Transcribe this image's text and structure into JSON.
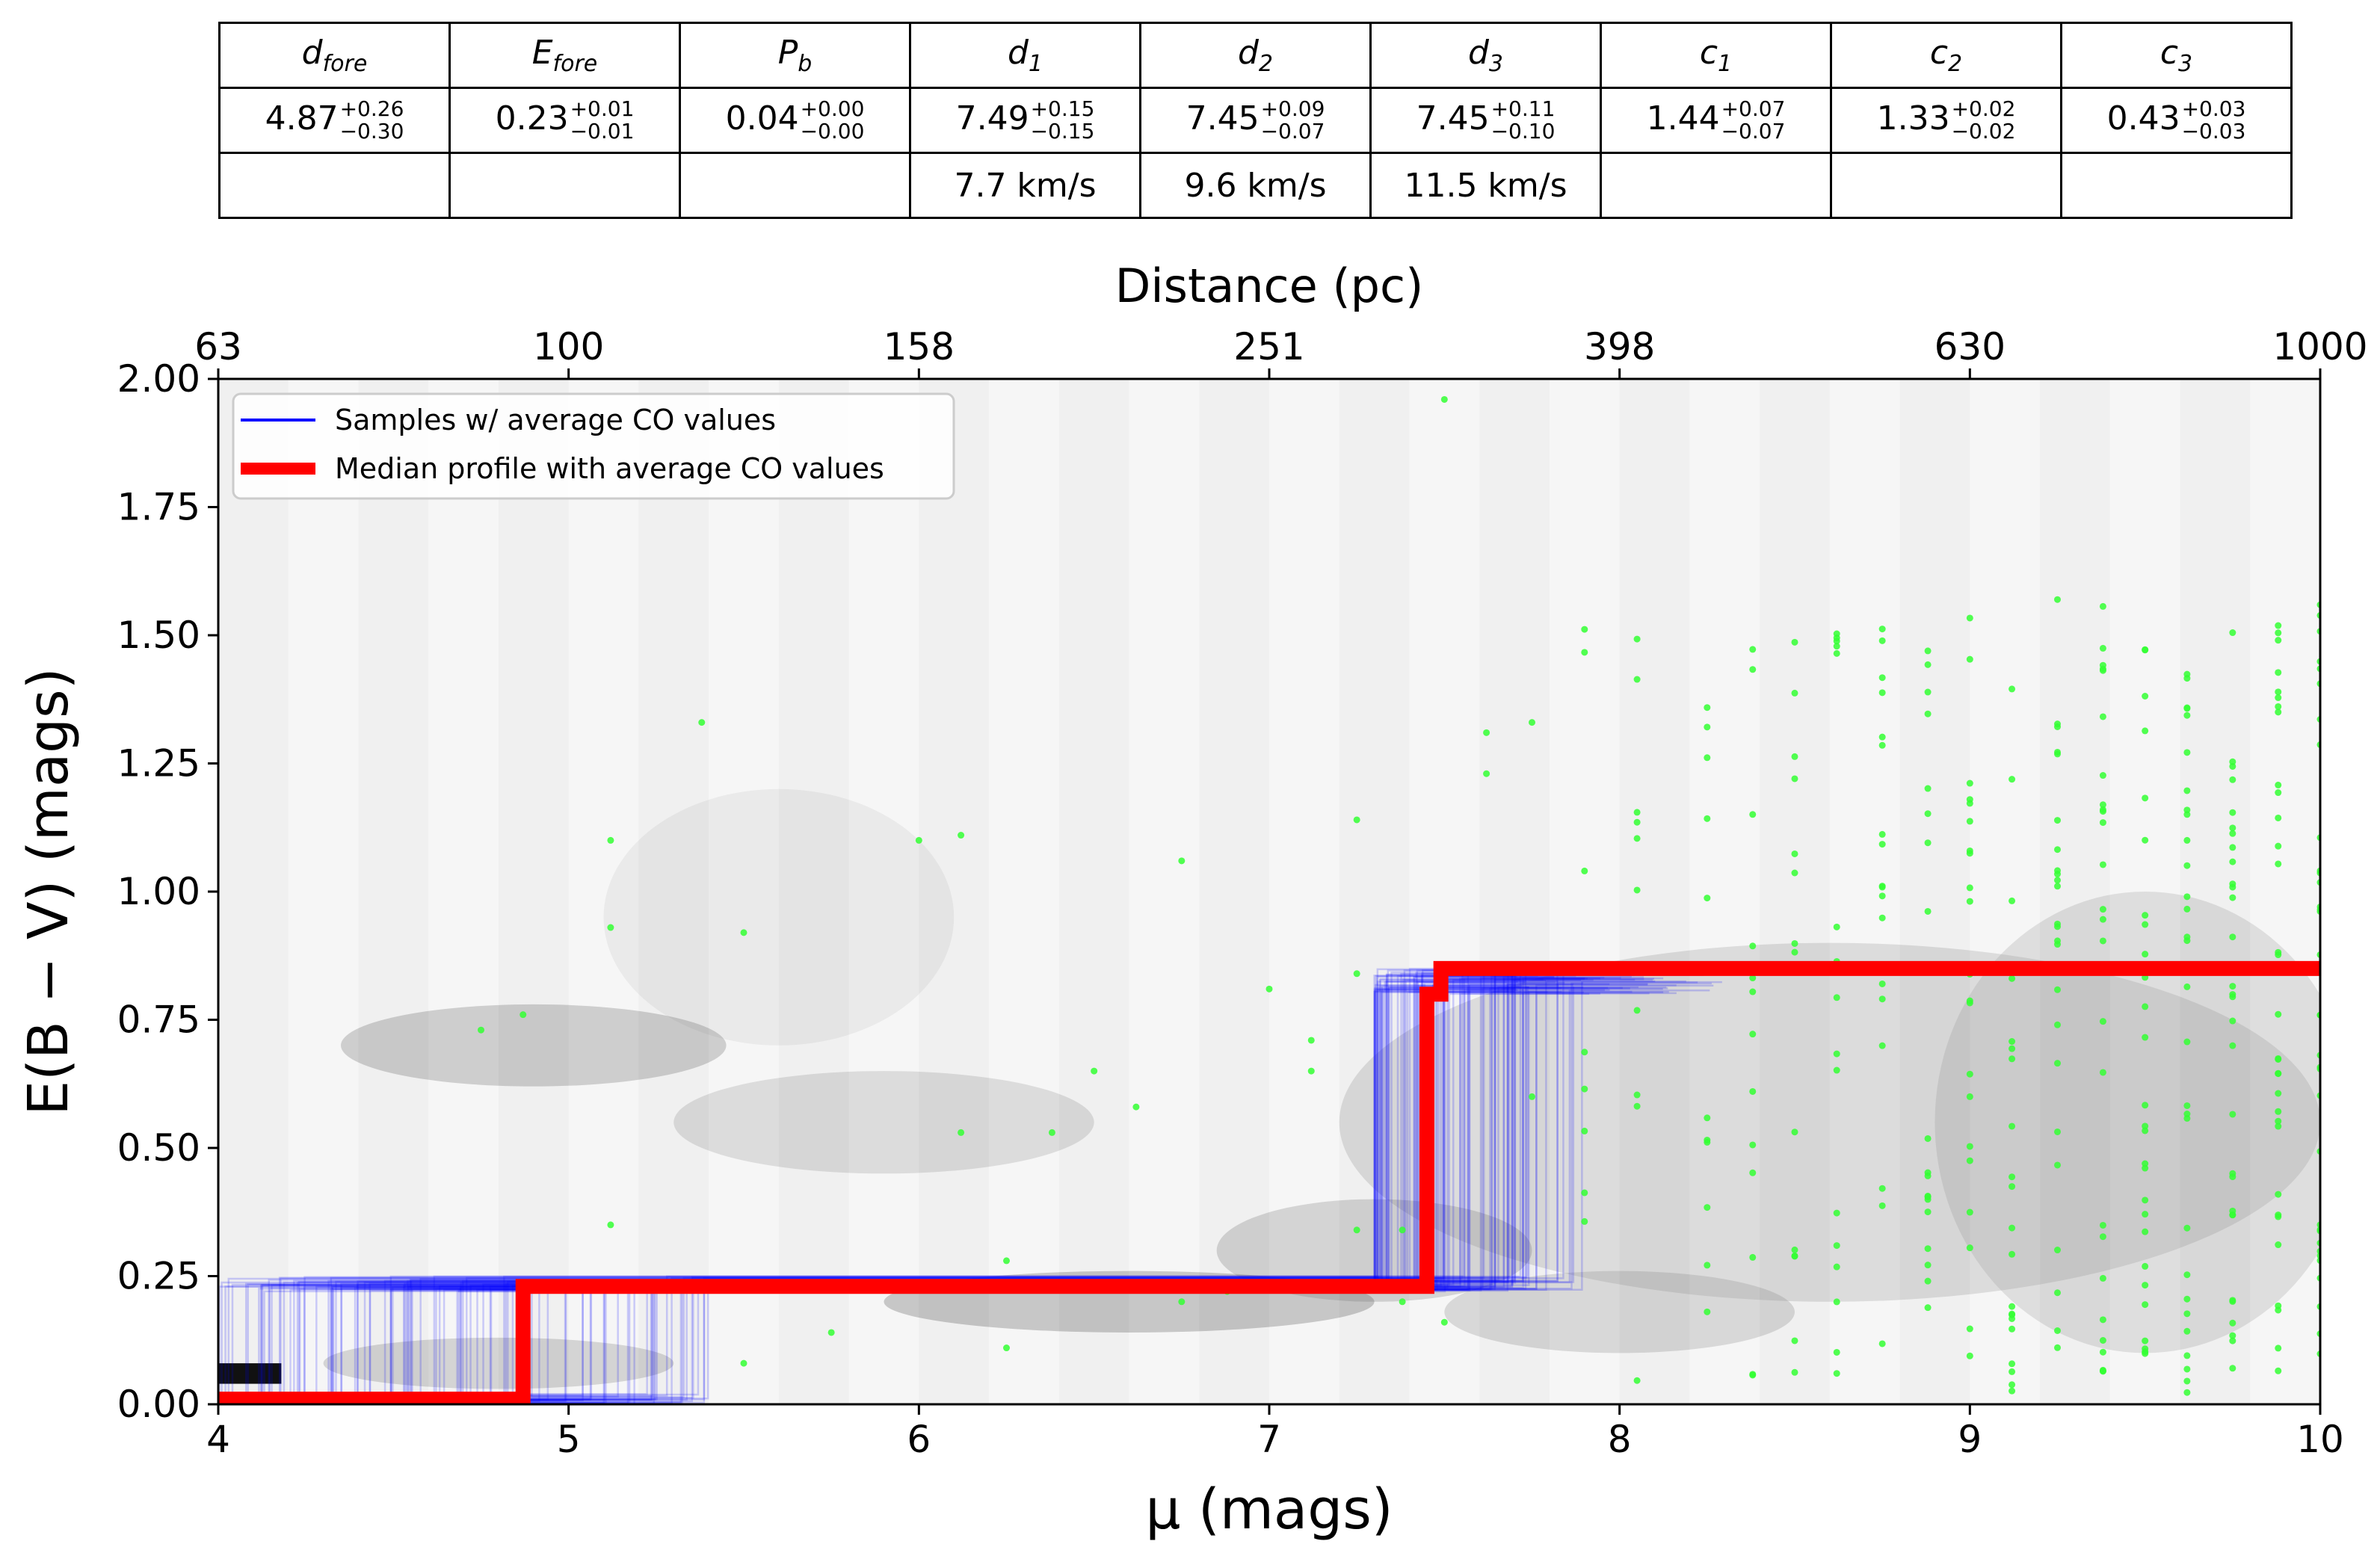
{
  "table": {
    "headers": [
      {
        "sym": "d",
        "sub": "fore"
      },
      {
        "sym": "E",
        "sub": "fore"
      },
      {
        "sym": "P",
        "sub": "b"
      },
      {
        "sym": "d",
        "sub": "1"
      },
      {
        "sym": "d",
        "sub": "2"
      },
      {
        "sym": "d",
        "sub": "3"
      },
      {
        "sym": "c",
        "sub": "1"
      },
      {
        "sym": "c",
        "sub": "2"
      },
      {
        "sym": "c",
        "sub": "3"
      }
    ],
    "values": [
      {
        "v": "4.87",
        "up": "+0.26",
        "lo": "−0.30"
      },
      {
        "v": "0.23",
        "up": "+0.01",
        "lo": "−0.01"
      },
      {
        "v": "0.04",
        "up": "+0.00",
        "lo": "−0.00"
      },
      {
        "v": "7.49",
        "up": "+0.15",
        "lo": "−0.15"
      },
      {
        "v": "7.45",
        "up": "+0.09",
        "lo": "−0.07"
      },
      {
        "v": "7.45",
        "up": "+0.11",
        "lo": "−0.10"
      },
      {
        "v": "1.44",
        "up": "+0.07",
        "lo": "−0.07"
      },
      {
        "v": "1.33",
        "up": "+0.02",
        "lo": "−0.02"
      },
      {
        "v": "0.43",
        "up": "+0.03",
        "lo": "−0.03"
      }
    ],
    "velocities": [
      "",
      "",
      "",
      "7.7 km/s",
      "9.6 km/s",
      "11.5 km/s",
      "",
      "",
      ""
    ]
  },
  "chart_data": {
    "type": "line",
    "xlabel": "μ (mags)",
    "ylabel": "E(B − V) (mags)",
    "top_xlabel": "Distance (pc)",
    "xlim": [
      4,
      10
    ],
    "ylim": [
      0,
      2
    ],
    "x_ticks": [
      "4",
      "5",
      "6",
      "7",
      "8",
      "9",
      "10"
    ],
    "y_ticks": [
      "0.00",
      "0.25",
      "0.50",
      "0.75",
      "1.00",
      "1.25",
      "1.50",
      "1.75",
      "2.00"
    ],
    "top_ticks": [
      "63",
      "100",
      "158",
      "251",
      "398",
      "630",
      "1000"
    ],
    "legend": {
      "position": "top-left",
      "entries": [
        {
          "label": "Samples  w/ average CO values",
          "color": "#0000ff"
        },
        {
          "label": "Median profile with average CO values",
          "color": "#ff0000"
        }
      ]
    },
    "series": [
      {
        "name": "Median profile with average CO values",
        "color": "#ff0000",
        "x": [
          4.0,
          4.87,
          4.87,
          7.45,
          7.45,
          7.49,
          7.49,
          10.0
        ],
        "y": [
          0.01,
          0.01,
          0.23,
          0.23,
          0.8,
          0.8,
          0.85,
          0.85
        ]
      },
      {
        "name": "Samples  w/ average CO values",
        "color": "#0000ff",
        "step1_range": [
          4.0,
          5.4
        ],
        "step2_range": [
          7.3,
          7.9
        ]
      }
    ],
    "star_points": {
      "color": "#33ff33",
      "x": [
        4.75,
        4.87,
        5.12,
        5.12,
        5.12,
        5.38,
        5.5,
        5.5,
        5.75,
        6.0,
        6.12,
        6.12,
        6.25,
        6.25,
        6.38,
        6.5,
        6.62,
        6.75,
        6.75,
        6.88,
        7.0,
        7.12,
        7.12,
        7.25,
        7.25,
        7.25,
        7.38,
        7.38,
        7.5,
        7.5,
        7.62,
        7.62,
        7.75,
        7.75
      ],
      "y": [
        0.73,
        0.76,
        1.1,
        0.93,
        0.35,
        1.33,
        0.92,
        0.08,
        0.14,
        1.1,
        1.11,
        0.53,
        0.11,
        0.28,
        0.53,
        0.65,
        0.58,
        1.06,
        0.2,
        0.22,
        0.81,
        0.71,
        0.65,
        1.14,
        0.84,
        0.34,
        0.34,
        0.2,
        1.96,
        0.16,
        1.31,
        1.23,
        1.33,
        0.6
      ]
    }
  }
}
